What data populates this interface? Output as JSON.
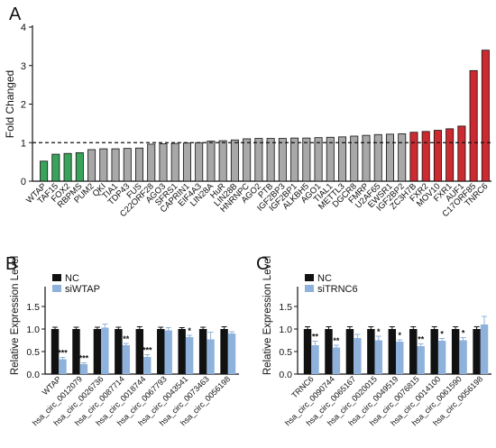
{
  "colors": {
    "green": "#3aa35b",
    "gray": "#a8a8a8",
    "red": "#cc2a30",
    "nc": "#111111",
    "si": "#8fb2dc",
    "axis": "#111111"
  },
  "chart_data": [
    {
      "panel": "A",
      "type": "bar",
      "ylabel": "Fold Changed",
      "ylim": [
        0,
        4
      ],
      "yticks": [
        "0",
        "1",
        "2",
        "3",
        "4"
      ],
      "reference_line": 1,
      "categories": [
        "WTAP",
        "TAF15",
        "FOX2",
        "RBPMS",
        "PUM2",
        "QKI",
        "TIA1",
        "TDP43",
        "FUS",
        "C22ORF28",
        "AGO3",
        "SFRS1",
        "CAPRIN1",
        "EIF4A3",
        "LIN28A",
        "HuR",
        "LIN28B",
        "HNRNPC",
        "AGO2",
        "PTB",
        "IGF2BP3",
        "IGF2BP1",
        "ALKBH5",
        "AGO1",
        "TIAL1",
        "METTL3",
        "DGCR8",
        "FMRP",
        "U2AF65",
        "EWSR1",
        "IGF2BP2",
        "ZC3H7B",
        "FXR2",
        "MOV10",
        "FXR1",
        "AUF1",
        "C17ORF85",
        "TNRC6"
      ],
      "values": [
        0.52,
        0.7,
        0.72,
        0.74,
        0.82,
        0.84,
        0.84,
        0.85,
        0.86,
        0.96,
        0.97,
        0.98,
        0.99,
        1.0,
        1.04,
        1.05,
        1.07,
        1.1,
        1.11,
        1.11,
        1.11,
        1.12,
        1.12,
        1.13,
        1.14,
        1.15,
        1.17,
        1.19,
        1.21,
        1.22,
        1.23,
        1.27,
        1.29,
        1.32,
        1.36,
        1.43,
        2.87,
        3.4
      ],
      "groups": [
        "green",
        "green",
        "green",
        "green",
        "gray",
        "gray",
        "gray",
        "gray",
        "gray",
        "gray",
        "gray",
        "gray",
        "gray",
        "gray",
        "gray",
        "gray",
        "gray",
        "gray",
        "gray",
        "gray",
        "gray",
        "gray",
        "gray",
        "gray",
        "gray",
        "gray",
        "gray",
        "gray",
        "gray",
        "gray",
        "gray",
        "red",
        "red",
        "red",
        "red",
        "red",
        "red",
        "red"
      ]
    },
    {
      "panel": "B",
      "type": "bar",
      "ylabel": "Relative Expression Level",
      "ylim": [
        0,
        1.5
      ],
      "yticks": [
        "0.0",
        "0.5",
        "1.0",
        "1.5"
      ],
      "legend": [
        "NC",
        "siWTAP"
      ],
      "categories": [
        "WTAP",
        "hsa_circ_0012079",
        "hsa_circ_0026736",
        "hsa_circ_0087714",
        "hsa_circ_0018744",
        "hsa_circ_0067793",
        "hsa_circ_0043541",
        "hsa_circ_0073463",
        "hsa_circ_0056198"
      ],
      "series": [
        {
          "name": "NC",
          "values": [
            1.0,
            1.0,
            1.0,
            1.0,
            1.0,
            1.0,
            1.0,
            1.0,
            1.0
          ],
          "errors": [
            0.04,
            0.04,
            0.04,
            0.04,
            0.05,
            0.04,
            0.03,
            0.04,
            0.05
          ]
        },
        {
          "name": "siWTAP",
          "values": [
            0.33,
            0.22,
            1.03,
            0.64,
            0.38,
            0.97,
            0.82,
            0.77,
            0.9
          ],
          "errors": [
            0.04,
            0.03,
            0.08,
            0.04,
            0.05,
            0.06,
            0.04,
            0.16,
            0.04
          ]
        }
      ],
      "significance": [
        "***",
        "***",
        "",
        "**",
        "***",
        "",
        "*",
        "",
        ""
      ]
    },
    {
      "panel": "C",
      "type": "bar",
      "ylabel": "Relative Expression Level",
      "ylim": [
        0,
        1.5
      ],
      "yticks": [
        "0.0",
        "0.5",
        "1.0",
        "1.5"
      ],
      "legend": [
        "NC",
        "siTRNC6"
      ],
      "categories": [
        "TRNC6",
        "hsa_circ_0090744",
        "hsa_circ_0065167",
        "hsa_circ_0020015",
        "hsa_circ_0049519",
        "hsa_circ_0076815",
        "hsa_circ_0014100",
        "hsa_circ_0061590",
        "hsa_circ_0056198"
      ],
      "series": [
        {
          "name": "NC",
          "values": [
            1.0,
            1.0,
            1.0,
            1.0,
            1.0,
            1.0,
            1.0,
            1.0,
            1.0
          ],
          "errors": [
            0.05,
            0.05,
            0.05,
            0.05,
            0.05,
            0.05,
            0.05,
            0.05,
            0.05
          ]
        },
        {
          "name": "siTRNC6",
          "values": [
            0.64,
            0.59,
            0.8,
            0.75,
            0.72,
            0.62,
            0.74,
            0.75,
            1.1
          ],
          "errors": [
            0.09,
            0.05,
            0.08,
            0.09,
            0.04,
            0.05,
            0.05,
            0.06,
            0.18
          ]
        }
      ],
      "significance": [
        "**",
        "**",
        "",
        "*",
        "*",
        "**",
        "*",
        "*",
        ""
      ]
    }
  ]
}
